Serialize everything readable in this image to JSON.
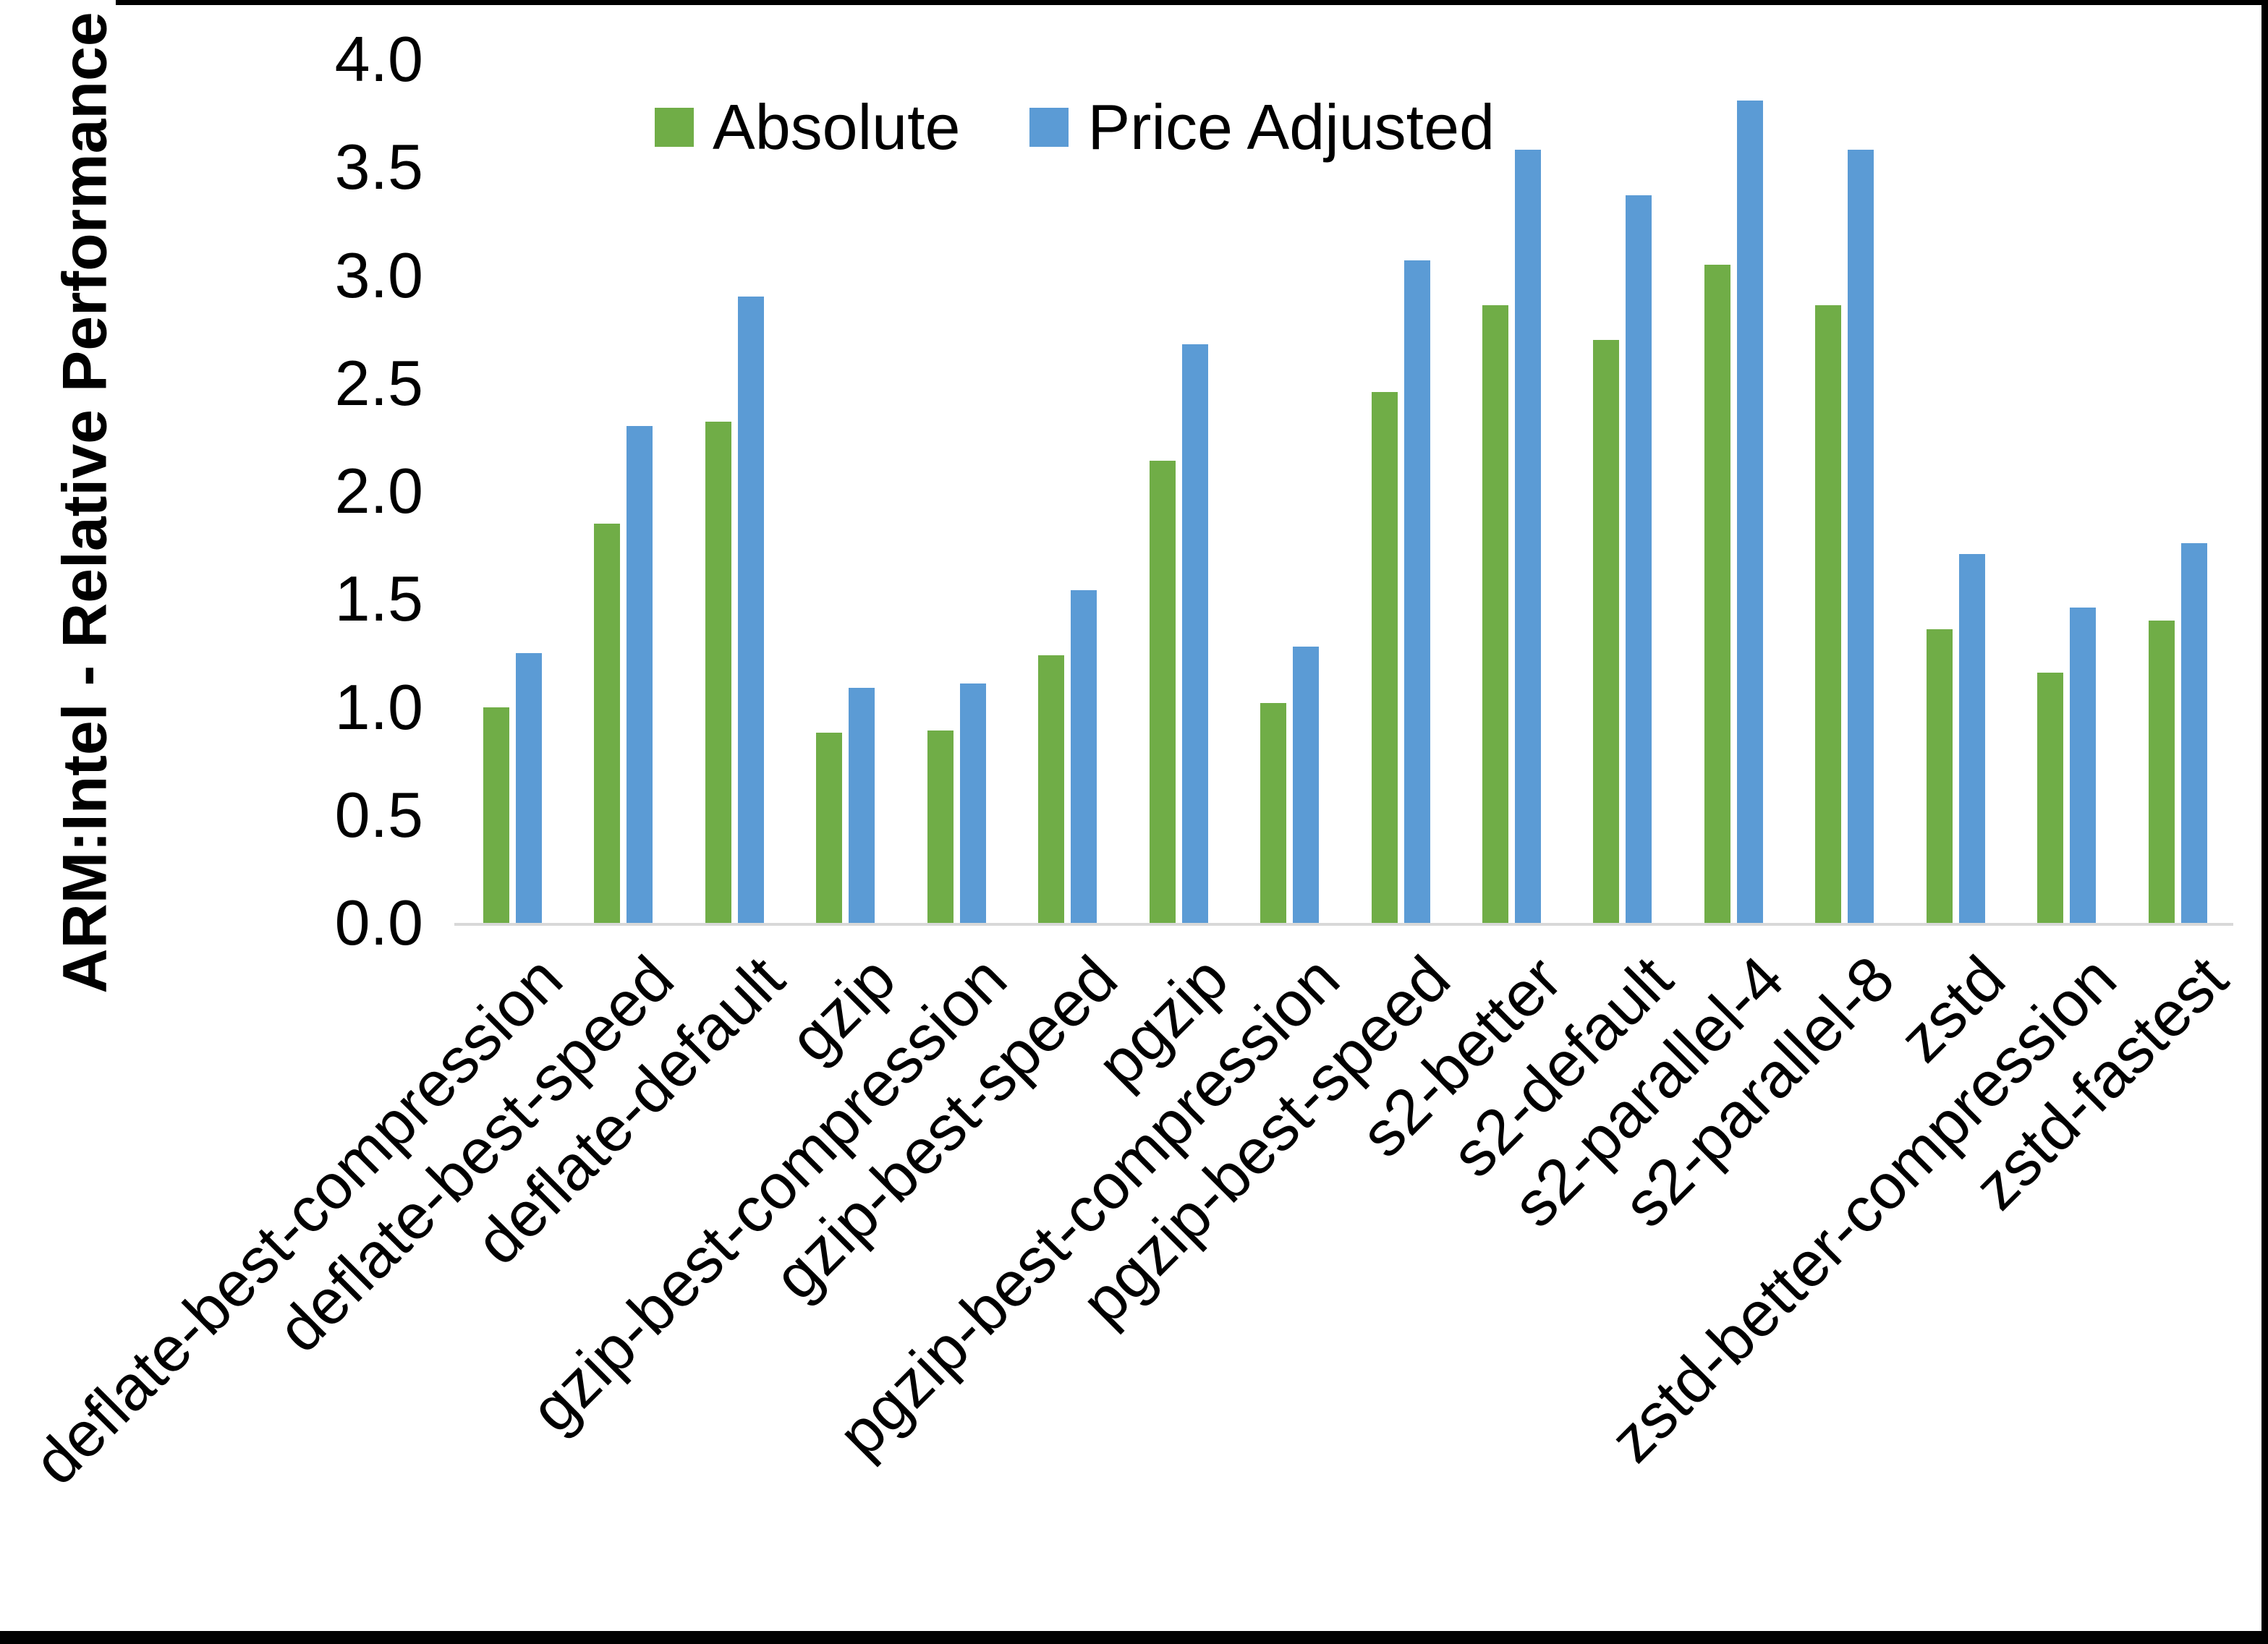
{
  "chart_data": {
    "type": "bar",
    "title": "",
    "xlabel": "",
    "ylabel": "ARM:Intel - Relative Performance",
    "categories": [
      "deflate-best-compression",
      "deflate-best-speed",
      "deflate-default",
      "gzip",
      "gzip-best-compression",
      "gzip-best-speed",
      "pgzip",
      "pgzip-best-compression",
      "pgzip-best-speed",
      "s2-better",
      "s2-default",
      "s2-parallel-4",
      "s2-parallel-8",
      "zstd",
      "zstd-better-compression",
      "zstd-fastest"
    ],
    "series": [
      {
        "name": "Absolute",
        "color": "#70AD47",
        "values": [
          1.0,
          1.85,
          2.32,
          0.88,
          0.89,
          1.24,
          2.14,
          1.02,
          2.46,
          2.86,
          2.7,
          3.05,
          2.86,
          1.36,
          1.16,
          1.4
        ]
      },
      {
        "name": "Price Adjusted",
        "color": "#5B9BD5",
        "values": [
          1.25,
          2.3,
          2.9,
          1.09,
          1.11,
          1.54,
          2.68,
          1.28,
          3.07,
          3.58,
          3.37,
          3.81,
          3.58,
          1.71,
          1.46,
          1.76
        ]
      }
    ],
    "ylim": [
      0.0,
      4.0
    ],
    "ytick_interval": 0.5,
    "ytick_labels": [
      "0.0",
      "0.5",
      "1.0",
      "1.5",
      "2.0",
      "2.5",
      "3.0",
      "3.5",
      "4.0"
    ],
    "legend_position": "top-center",
    "grid": false,
    "axis_line_color": "#D8D8D8",
    "text_color": "#000000",
    "background_color": "#FFFFFF",
    "frame_color": "#000000"
  }
}
